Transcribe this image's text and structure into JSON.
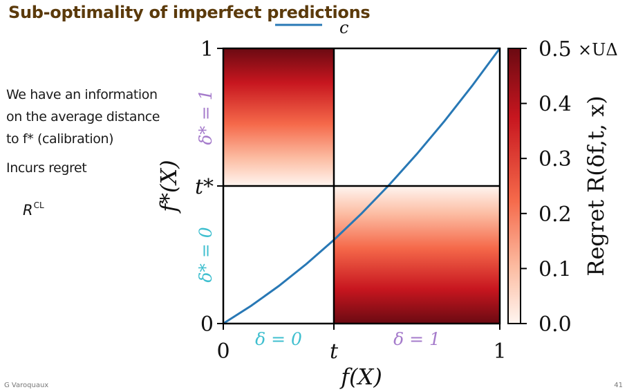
{
  "slide": {
    "title": "Sub-optimality of imperfect predictions",
    "bullets": [
      "We have an information on the average distance to f* (calibration)",
      "Incurs regret"
    ],
    "regret_symbol": "R",
    "regret_superscript": "CL",
    "author": "G Varoquaux",
    "page_number": "41"
  },
  "colors": {
    "title": "#5b3a0b",
    "curve": "#2878b5",
    "delta_zero": "#3fbfcf",
    "delta_one": "#a57bcb",
    "colormap": "Reds"
  },
  "chart_data": {
    "type": "heatmap",
    "xlabel": "f(X)",
    "ylabel": "f*(X)",
    "xlim": [
      0,
      1
    ],
    "ylim": [
      0,
      1
    ],
    "x_ticks": [
      "0",
      "t",
      "1"
    ],
    "y_ticks": [
      "0",
      "t*",
      "1"
    ],
    "threshold_t": 0.4,
    "threshold_t_star": 0.5,
    "regions": [
      {
        "x": [
          0,
          0.4
        ],
        "y": [
          0.5,
          1
        ],
        "regret_min": 0,
        "regret_max": 0.5
      },
      {
        "x": [
          0.4,
          1
        ],
        "y": [
          0,
          0.5
        ],
        "regret_min": 0,
        "regret_max": 0.5
      }
    ],
    "region_labels": {
      "delta_x0": "δ = 0",
      "delta_x1": "δ = 1",
      "delta_y0": "δ* = 0",
      "delta_y1": "δ* = 1"
    },
    "legend": {
      "label": "c",
      "placement": "top"
    },
    "calibration_curve": {
      "x": [
        0,
        0.1,
        0.2,
        0.3,
        0.4,
        0.5,
        0.6,
        0.7,
        0.8,
        0.9,
        1.0
      ],
      "y": [
        0,
        0.064,
        0.136,
        0.216,
        0.304,
        0.4,
        0.504,
        0.616,
        0.736,
        0.864,
        1.0
      ]
    },
    "colorbar": {
      "label": "Regret R(δf,t, x)",
      "multiplier": "×UΔ",
      "range": [
        0,
        0.5
      ],
      "ticks": [
        "0.0",
        "0.1",
        "0.2",
        "0.3",
        "0.4",
        "0.5"
      ]
    }
  }
}
